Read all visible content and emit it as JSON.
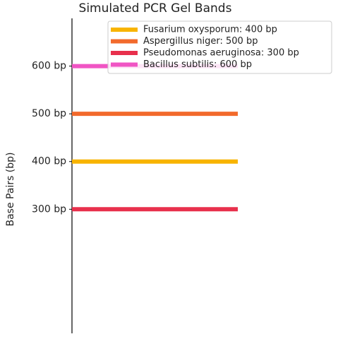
{
  "chart_data": {
    "type": "band",
    "title": "Simulated PCR Gel Bands",
    "y_label": "Base Pairs (bp)",
    "ylim": [
      40,
      700
    ],
    "yticks": [
      {
        "value": 300,
        "label": "300 bp"
      },
      {
        "value": 400,
        "label": "400 bp"
      },
      {
        "value": 500,
        "label": "500 bp"
      },
      {
        "value": 600,
        "label": "600 bp"
      }
    ],
    "legend": "upper right",
    "series": [
      {
        "name": "Fusarium oxysporum: 400 bp",
        "color": "#f8b400",
        "values": [
          400
        ]
      },
      {
        "name": "Aspergillus niger: 500 bp",
        "color": "#f26a2c",
        "values": [
          500
        ]
      },
      {
        "name": "Pseudomonas aeruginosa: 300 bp",
        "color": "#e8304c",
        "values": [
          300
        ]
      },
      {
        "name": "Bacillus subtilis: 600 bp",
        "color": "#f055c4",
        "values": [
          600
        ]
      }
    ]
  }
}
